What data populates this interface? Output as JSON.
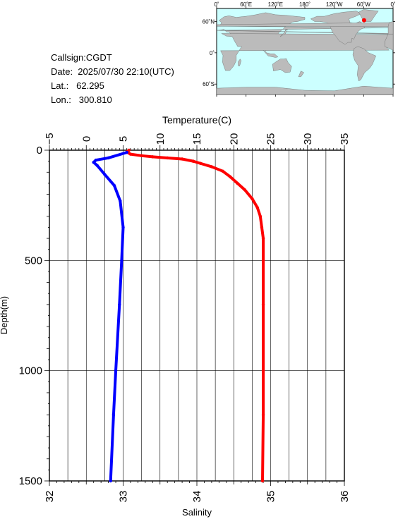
{
  "info": {
    "callsign": "Callsign:CGDT",
    "date": "Date:  2025/07/30 22:10(UTC)",
    "lat": "Lat.:   62.295",
    "lon": "Lon.:   300.810"
  },
  "map": {
    "lon_labels": [
      "0˚",
      "60˚E",
      "120˚E",
      "180˚",
      "120˚W",
      "60˚W",
      "0˚"
    ],
    "lat_labels": [
      "60˚N",
      "0˚",
      "60˚S"
    ],
    "marker": {
      "lat": 62.295,
      "lon": 300.81
    },
    "ocean_color": "#ccffff",
    "land_color": "#bbbbbb",
    "marker_color": "#ff0000"
  },
  "chart_data": {
    "type": "line",
    "ylabel": "Depth(m)",
    "ylim": [
      1500,
      0
    ],
    "y_ticks": [
      "0",
      "500",
      "1000",
      "1500"
    ],
    "top_axis": {
      "label": "Temperature(C)",
      "range": [
        -5,
        35
      ],
      "ticks": [
        "−5",
        "0",
        "5",
        "10",
        "15",
        "20",
        "25",
        "30",
        "35"
      ]
    },
    "bottom_axis": {
      "label": "Salinity",
      "range": [
        32,
        36
      ],
      "ticks": [
        "32",
        "33",
        "34",
        "35",
        "36"
      ]
    },
    "grid": true,
    "series": [
      {
        "color": "#ff0000",
        "axis": "top",
        "points": [
          [
            5.8,
            0
          ],
          [
            5.5,
            8
          ],
          [
            6,
            18
          ],
          [
            7.5,
            25
          ],
          [
            9,
            30
          ],
          [
            11,
            35
          ],
          [
            13,
            40
          ],
          [
            14.5,
            50
          ],
          [
            15.5,
            60
          ],
          [
            17,
            75
          ],
          [
            18.5,
            95
          ],
          [
            19.5,
            120
          ],
          [
            20.5,
            150
          ],
          [
            21.5,
            180
          ],
          [
            22.5,
            220
          ],
          [
            23.2,
            260
          ],
          [
            23.6,
            300
          ],
          [
            23.8,
            350
          ],
          [
            24,
            400
          ],
          [
            24,
            500
          ],
          [
            24,
            700
          ],
          [
            24,
            1000
          ],
          [
            24,
            1200
          ],
          [
            23.9,
            1500
          ]
        ]
      },
      {
        "color": "#0000ff",
        "axis": "bottom",
        "points": [
          [
            33.05,
            10
          ],
          [
            32.8,
            35
          ],
          [
            32.63,
            45
          ],
          [
            32.6,
            55
          ],
          [
            32.65,
            70
          ],
          [
            32.75,
            110
          ],
          [
            32.88,
            160
          ],
          [
            32.96,
            230
          ],
          [
            33.0,
            350
          ],
          [
            32.98,
            500
          ],
          [
            32.95,
            700
          ],
          [
            32.9,
            1000
          ],
          [
            32.87,
            1200
          ],
          [
            32.83,
            1500
          ]
        ]
      }
    ]
  }
}
